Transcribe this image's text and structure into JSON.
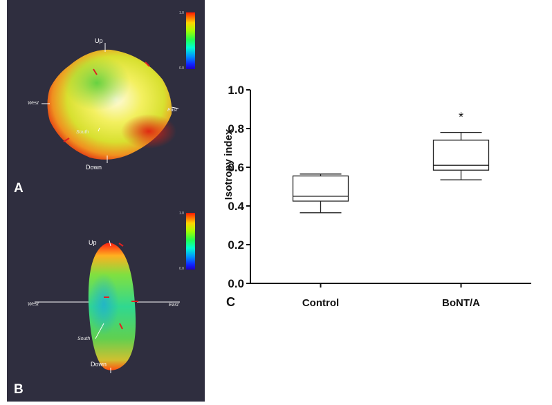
{
  "panels": {
    "a": {
      "letter": "A",
      "up": "Up",
      "down": "Down",
      "east": "East",
      "west": "West",
      "south": "South"
    },
    "b": {
      "letter": "B",
      "up": "Up",
      "down": "Down",
      "east": "East",
      "west": "West",
      "south": "South"
    },
    "c": {
      "letter": "C"
    }
  },
  "scalebar": {
    "max": "1.0",
    "min": "0.0"
  },
  "chart_data": {
    "type": "box",
    "ylabel": "Isotropy index",
    "xlabel": "",
    "ylim": [
      0.0,
      1.0
    ],
    "yticks": [
      "0.0",
      "0.2",
      "0.4",
      "0.6",
      "0.8",
      "1.0"
    ],
    "categories": [
      "Control",
      "BoNT/A"
    ],
    "boxes": [
      {
        "name": "Control",
        "min": 0.365,
        "q1": 0.425,
        "median": 0.45,
        "q3": 0.555,
        "max": 0.565,
        "annotation": ""
      },
      {
        "name": "BoNT/A",
        "min": 0.535,
        "q1": 0.585,
        "median": 0.61,
        "q3": 0.74,
        "max": 0.78,
        "annotation": "*"
      }
    ],
    "grid": false
  }
}
